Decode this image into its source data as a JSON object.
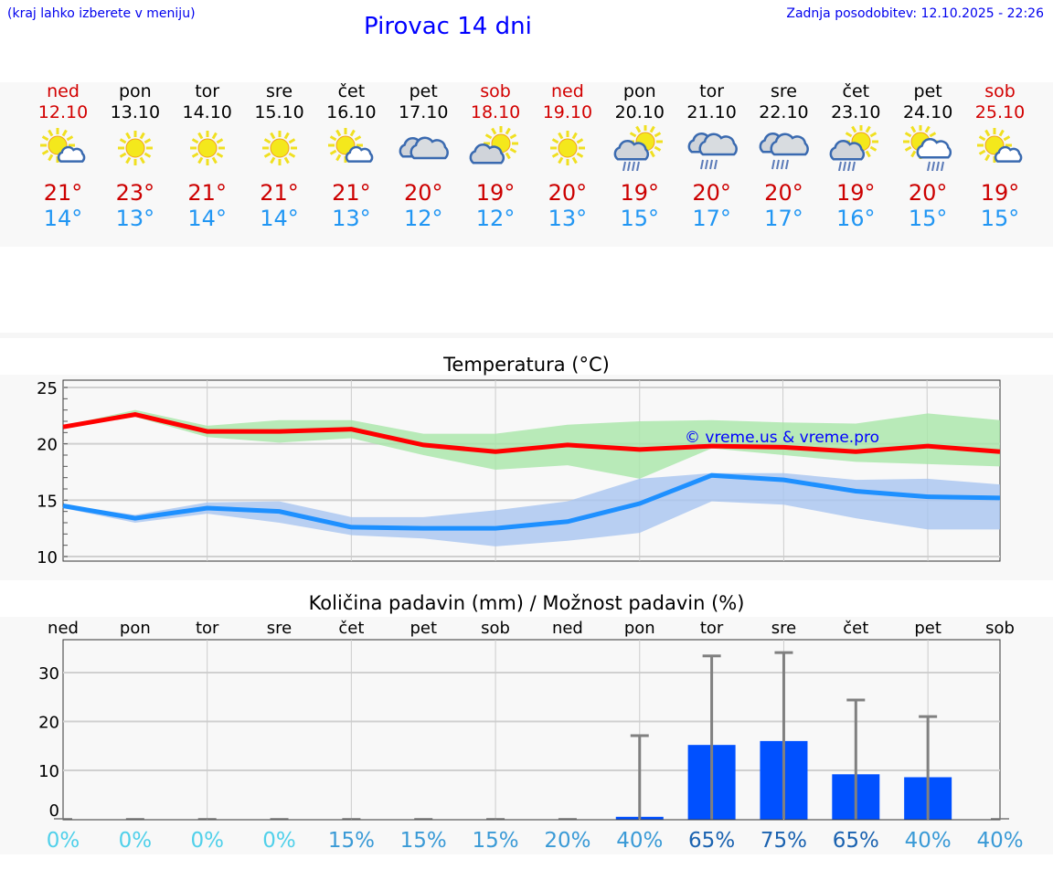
{
  "header": {
    "hint": "(kraj lahko izberete v meniju)",
    "title": "Pirovac 14 dni",
    "updated": "Zadnja posodobitev: 12.10.2025 - 22:26"
  },
  "days": [
    {
      "day": "ned",
      "date": "12.10",
      "weekend": true,
      "icon": "sun-small-cloud",
      "max": "21°",
      "min": "14°"
    },
    {
      "day": "pon",
      "date": "13.10",
      "weekend": false,
      "icon": "sun",
      "max": "23°",
      "min": "13°"
    },
    {
      "day": "tor",
      "date": "14.10",
      "weekend": false,
      "icon": "sun",
      "max": "21°",
      "min": "14°"
    },
    {
      "day": "sre",
      "date": "15.10",
      "weekend": false,
      "icon": "sun",
      "max": "21°",
      "min": "14°"
    },
    {
      "day": "čet",
      "date": "16.10",
      "weekend": false,
      "icon": "sun-small-cloud",
      "max": "21°",
      "min": "13°"
    },
    {
      "day": "pet",
      "date": "17.10",
      "weekend": false,
      "icon": "clouds",
      "max": "20°",
      "min": "12°"
    },
    {
      "day": "sob",
      "date": "18.10",
      "weekend": true,
      "icon": "cloud-sun",
      "max": "19°",
      "min": "12°"
    },
    {
      "day": "ned",
      "date": "19.10",
      "weekend": true,
      "icon": "sun",
      "max": "20°",
      "min": "13°"
    },
    {
      "day": "pon",
      "date": "20.10",
      "weekend": false,
      "icon": "cloud-sun-rain",
      "max": "19°",
      "min": "15°"
    },
    {
      "day": "tor",
      "date": "21.10",
      "weekend": false,
      "icon": "clouds-rain",
      "max": "20°",
      "min": "17°"
    },
    {
      "day": "sre",
      "date": "22.10",
      "weekend": false,
      "icon": "clouds-rain",
      "max": "20°",
      "min": "17°"
    },
    {
      "day": "čet",
      "date": "23.10",
      "weekend": false,
      "icon": "cloud-sun-rain",
      "max": "19°",
      "min": "16°"
    },
    {
      "day": "pet",
      "date": "24.10",
      "weekend": false,
      "icon": "sun-cloud-rain",
      "max": "20°",
      "min": "15°"
    },
    {
      "day": "sob",
      "date": "25.10",
      "weekend": true,
      "icon": "sun-small-cloud",
      "max": "19°",
      "min": "15°"
    }
  ],
  "colors": {
    "max": "#ff0000",
    "min": "#1e90ff",
    "max_band": "#a8e6a8",
    "min_band": "#a8c4f0",
    "bar": "#0050ff",
    "whisker": "#808080"
  },
  "chart_data": [
    {
      "type": "line",
      "title": "Temperatura (°C)",
      "ylim": [
        10,
        25
      ],
      "yticks": [
        "10",
        "15",
        "20",
        "25"
      ],
      "watermark": "© vreme.us & vreme.pro",
      "series": [
        {
          "name": "max",
          "values": [
            21.5,
            22.6,
            21.1,
            21.1,
            21.3,
            19.9,
            19.3,
            19.9,
            19.5,
            19.8,
            19.7,
            19.3,
            19.8,
            19.3
          ],
          "band_high": [
            21.6,
            23.0,
            21.6,
            22.1,
            22.1,
            20.9,
            20.9,
            21.7,
            22.0,
            22.1,
            21.9,
            21.8,
            22.7,
            22.1
          ],
          "band_low": [
            21.4,
            22.4,
            20.6,
            20.1,
            20.5,
            19.0,
            17.7,
            18.1,
            16.9,
            19.6,
            19.0,
            18.4,
            18.2,
            18.0
          ]
        },
        {
          "name": "min",
          "values": [
            14.5,
            13.4,
            14.3,
            14.0,
            12.6,
            12.5,
            12.5,
            13.1,
            14.7,
            17.2,
            16.8,
            15.8,
            15.3,
            15.2
          ],
          "band_high": [
            14.6,
            13.7,
            14.8,
            14.9,
            13.5,
            13.5,
            14.1,
            14.9,
            16.9,
            17.4,
            17.4,
            16.8,
            16.9,
            16.4
          ],
          "band_low": [
            14.3,
            13.0,
            13.8,
            13.0,
            11.9,
            11.6,
            10.9,
            11.4,
            12.1,
            14.9,
            14.6,
            13.4,
            12.4,
            12.4
          ]
        }
      ]
    },
    {
      "type": "bar",
      "title": "Količina padavin (mm) / Možnost padavin (%)",
      "ylim": [
        0,
        37
      ],
      "yticks": [
        "0",
        "10",
        "20",
        "30"
      ],
      "categories": [
        "ned",
        "pon",
        "tor",
        "sre",
        "čet",
        "pet",
        "sob",
        "ned",
        "pon",
        "tor",
        "sre",
        "čet",
        "pet",
        "sob"
      ],
      "values": [
        0,
        0,
        0,
        0,
        0,
        0,
        0,
        0,
        0.5,
        15.2,
        16.0,
        9.2,
        8.6,
        0
      ],
      "error_high": [
        0,
        0,
        0,
        0,
        0,
        0,
        0,
        0,
        17.1,
        33.4,
        34.1,
        24.4,
        21.0,
        0
      ],
      "probability": [
        "0%",
        "0%",
        "0%",
        "0%",
        "15%",
        "15%",
        "15%",
        "20%",
        "40%",
        "65%",
        "75%",
        "65%",
        "40%",
        "40%"
      ]
    }
  ]
}
